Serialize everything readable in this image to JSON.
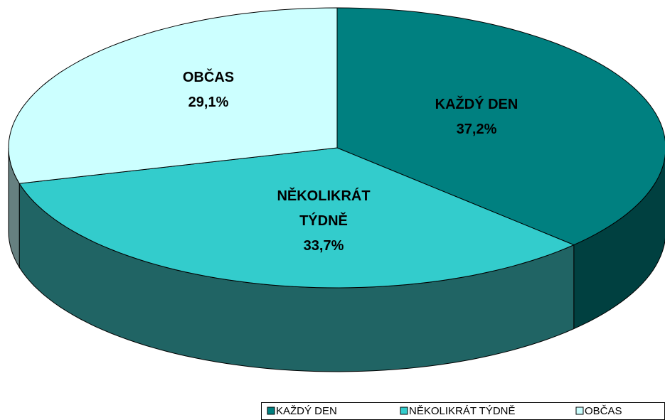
{
  "chart_data": {
    "type": "pie3d",
    "categories": [
      "KAŽDÝ DEN",
      "NĚKOLIKRÁT TÝDNĚ",
      "OBČAS"
    ],
    "values": [
      37.2,
      33.7,
      29.1
    ],
    "value_labels": [
      "37,2%",
      "33,7%",
      "29,1%"
    ],
    "colors": [
      "#008080",
      "#33cccc",
      "#ccffff"
    ],
    "side_colors": [
      "#004040",
      "#206464",
      "#668080"
    ],
    "legend": "bottom-right"
  }
}
